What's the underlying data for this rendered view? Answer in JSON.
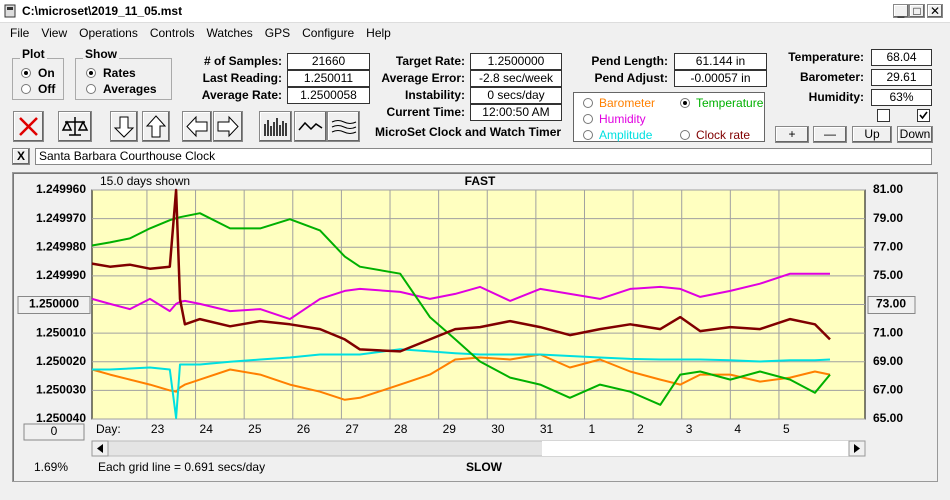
{
  "window": {
    "title": "C:\\microset\\2019_11_05.mst"
  },
  "menu": [
    "File",
    "View",
    "Operations",
    "Controls",
    "Watches",
    "GPS",
    "Configure",
    "Help"
  ],
  "plot_group": {
    "title": "Plot",
    "options": [
      "On",
      "Off"
    ]
  },
  "show_group": {
    "title": "Show",
    "options": [
      "Rates",
      "Averages"
    ]
  },
  "stats": [
    {
      "label": "# of Samples:",
      "value": "21660"
    },
    {
      "label": "Last Reading:",
      "value": "1.250011"
    },
    {
      "label": "Average Rate:",
      "value": "1.2500058"
    }
  ],
  "rates": [
    {
      "label": "Target Rate:",
      "value": "1.2500000"
    },
    {
      "label": "Average Error:",
      "value": "-2.8 sec/week"
    },
    {
      "label": "Instability:",
      "value": "0 secs/day"
    },
    {
      "label": "Current Time:",
      "value": "12:00:50 AM"
    }
  ],
  "app_title": "MicroSet Clock and Watch Timer",
  "pendulum": [
    {
      "label": "Pend Length:",
      "value": "61.144 in"
    },
    {
      "label": "Pend Adjust:",
      "value": "-0.00057 in"
    }
  ],
  "environment": [
    {
      "label": "Temperature:",
      "value": "68.04"
    },
    {
      "label": "Barometer:",
      "value": "29.61"
    },
    {
      "label": "Humidity:",
      "value": "63%"
    }
  ],
  "buttons": [
    "+",
    "—",
    "Up",
    "Down"
  ],
  "clock_name_button": "X",
  "clock_name": "Santa Barbara Courthouse Clock",
  "chart_data": {
    "type": "line",
    "days_note": "15.0 days shown",
    "top_label": "FAST",
    "bottom_label": "SLOW",
    "grid_note": "Each grid line = 0.691 secs/day",
    "x_label": "Day:",
    "corner_value": "1.69%",
    "reset_button": "0",
    "x": [
      -1.13,
      -0.76,
      -0.35,
      0.06,
      0.47,
      0.6,
      0.68,
      0.78,
      1.09,
      1.71,
      2.33,
      2.94,
      3.56,
      4.07,
      4.38,
      5.21,
      5.82,
      6.34,
      6.85,
      7.47,
      8.09,
      8.7,
      9.32,
      9.94,
      10.56,
      10.97,
      11.38,
      12,
      12.61,
      13.23,
      13.74,
      14.05
    ],
    "xlim": [
      -1.13,
      14.77
    ],
    "xticks": [
      {
        "value": 0,
        "label": "23"
      },
      {
        "value": 1,
        "label": "24"
      },
      {
        "value": 2,
        "label": "25"
      },
      {
        "value": 3,
        "label": "26"
      },
      {
        "value": 4,
        "label": "27"
      },
      {
        "value": 5,
        "label": "28"
      },
      {
        "value": 6,
        "label": "29"
      },
      {
        "value": 7,
        "label": "30"
      },
      {
        "value": 8,
        "label": "31"
      },
      {
        "value": 9,
        "label": "1"
      },
      {
        "value": 10,
        "label": "2"
      },
      {
        "value": 11,
        "label": "3"
      },
      {
        "value": 12,
        "label": "4"
      },
      {
        "value": 13,
        "label": "5"
      }
    ],
    "ylim": [
      1.24996,
      1.25004
    ],
    "y_inverted": true,
    "yticks": [
      {
        "value": 1.24996,
        "label": "1.249960"
      },
      {
        "value": 1.24997,
        "label": "1.249970"
      },
      {
        "value": 1.24998,
        "label": "1.249980"
      },
      {
        "value": 1.24999,
        "label": "1.249990"
      },
      {
        "value": 1.25,
        "label": "1.250000"
      },
      {
        "value": 1.25001,
        "label": "1.250010"
      },
      {
        "value": 1.25002,
        "label": "1.250020"
      },
      {
        "value": 1.25003,
        "label": "1.250030"
      },
      {
        "value": 1.25004,
        "label": "1.250040"
      }
    ],
    "y2lim": [
      65,
      81
    ],
    "y2ticks": [
      {
        "value": 81,
        "label": "81.00"
      },
      {
        "value": 79,
        "label": "79.00"
      },
      {
        "value": 77,
        "label": "77.00"
      },
      {
        "value": 75,
        "label": "75.00"
      },
      {
        "value": 73,
        "label": "73.00"
      },
      {
        "value": 71,
        "label": "71.00"
      },
      {
        "value": 69,
        "label": "69.00"
      },
      {
        "value": 67,
        "label": "67.00"
      },
      {
        "value": 65,
        "label": "65.00"
      }
    ],
    "grid": true,
    "series": [
      {
        "name": "Barometer",
        "color": "#ff8000",
        "axis": "y2",
        "values": [
          68.46,
          68.1,
          67.75,
          67.4,
          67.0,
          66.91,
          67.2,
          67.4,
          67.75,
          68.46,
          68.1,
          67.4,
          66.91,
          66.34,
          66.48,
          67.4,
          68.1,
          69.16,
          69.3,
          69.16,
          69.51,
          68.6,
          69.16,
          68.32,
          67.75,
          67.4,
          68.1,
          68.1,
          67.61,
          67.89,
          68.32,
          68.1
        ]
      },
      {
        "name": "Humidity",
        "color": "#e000e0",
        "axis": "y2",
        "values": [
          73.39,
          73.04,
          72.68,
          73.39,
          72.54,
          73.04,
          73.18,
          73.25,
          73.04,
          72.54,
          72.68,
          71.98,
          73.39,
          73.95,
          74.09,
          73.88,
          73.39,
          73.74,
          74.23,
          73.25,
          74.09,
          73.74,
          73.39,
          74.09,
          74.23,
          74.09,
          73.53,
          73.95,
          74.45,
          75.15,
          75.15,
          75.15
        ]
      },
      {
        "name": "Amplitude",
        "color": "#00e0e0",
        "axis": "y2",
        "values": [
          68.46,
          68.46,
          68.53,
          68.6,
          68.46,
          65.07,
          68.81,
          68.81,
          68.81,
          69.0,
          69.16,
          69.3,
          69.51,
          69.51,
          69.51,
          69.87,
          69.72,
          69.6,
          69.51,
          69.51,
          69.51,
          69.4,
          69.3,
          69.2,
          69.16,
          69.16,
          69.16,
          69.1,
          69.02,
          69.1,
          69.1,
          69.16
        ]
      },
      {
        "name": "Temperature",
        "color": "#00b000",
        "axis": "y2",
        "values": [
          77.12,
          77.34,
          77.62,
          78.32,
          78.89,
          79.03,
          79.1,
          79.17,
          79.38,
          78.32,
          78.32,
          78.96,
          78.18,
          76.35,
          75.64,
          75.15,
          72.12,
          70.57,
          69.02,
          67.89,
          67.4,
          66.48,
          67.4,
          66.91,
          65.99,
          68.1,
          68.32,
          67.75,
          68.32,
          67.75,
          66.83,
          68.1
        ]
      },
      {
        "name": "Clock rate",
        "color": "#800000",
        "values": [
          1.2499857,
          1.2499868,
          1.2499861,
          1.2499875,
          1.2499868,
          1.24996,
          1.2499981,
          1.2500069,
          1.2500051,
          1.2500076,
          1.2500058,
          1.2500069,
          1.2500086,
          1.2500122,
          1.2500157,
          1.2500164,
          1.2500122,
          1.2500086,
          1.2500079,
          1.2500058,
          1.2500079,
          1.2500107,
          1.2500086,
          1.2500069,
          1.2500086,
          1.2500044,
          1.2500093,
          1.2500079,
          1.2500086,
          1.2500051,
          1.2500069,
          1.2500122
        ]
      }
    ]
  }
}
